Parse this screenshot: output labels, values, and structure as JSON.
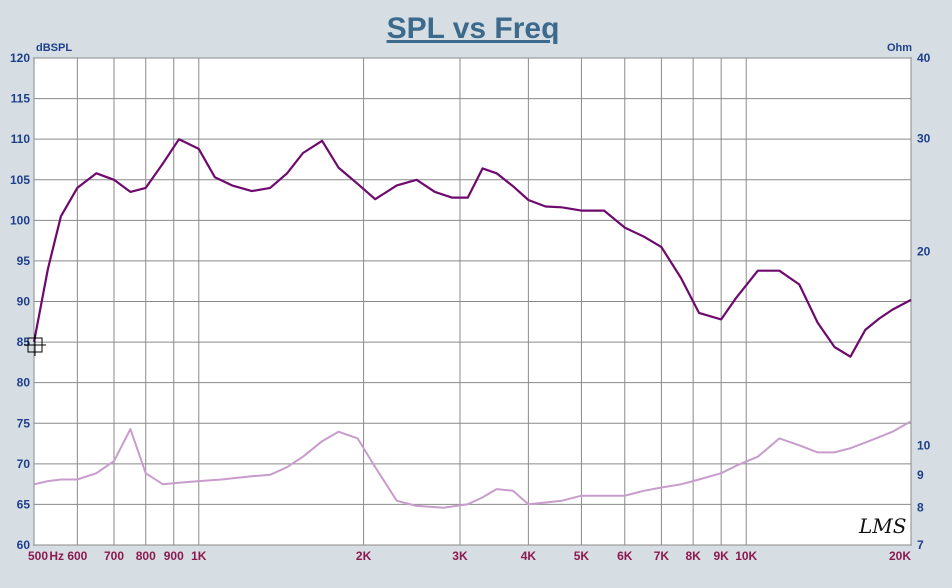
{
  "chart_data": {
    "type": "line",
    "title": "SPL vs Freq",
    "ylabel_left": "dBSPL",
    "ylabel_right": "Ohm",
    "x_scale": "log",
    "xlim": [
      500,
      20000
    ],
    "ylim": [
      60,
      120
    ],
    "ylim_right_log": [
      7,
      40
    ],
    "grid": true,
    "legend": "none",
    "x_tick_labels": [
      {
        "value": 500,
        "label": "500"
      },
      {
        "value": 550,
        "label": "Hz"
      },
      {
        "value": 600,
        "label": "600"
      },
      {
        "value": 700,
        "label": "700"
      },
      {
        "value": 800,
        "label": "800"
      },
      {
        "value": 900,
        "label": "900"
      },
      {
        "value": 1000,
        "label": "1K"
      },
      {
        "value": 2000,
        "label": "2K"
      },
      {
        "value": 3000,
        "label": "3K"
      },
      {
        "value": 4000,
        "label": "4K"
      },
      {
        "value": 5000,
        "label": "5K"
      },
      {
        "value": 6000,
        "label": "6K"
      },
      {
        "value": 7000,
        "label": "7K"
      },
      {
        "value": 8000,
        "label": "8K"
      },
      {
        "value": 9000,
        "label": "9K"
      },
      {
        "value": 10000,
        "label": "10K"
      },
      {
        "value": 20000,
        "label": "20K"
      }
    ],
    "y_left_ticks": [
      {
        "value": 60,
        "label": "60"
      },
      {
        "value": 65,
        "label": "65"
      },
      {
        "value": 70,
        "label": "70"
      },
      {
        "value": 75,
        "label": "75"
      },
      {
        "value": 80,
        "label": "80"
      },
      {
        "value": 85,
        "label": "85"
      },
      {
        "value": 90,
        "label": "90"
      },
      {
        "value": 95,
        "label": "95"
      },
      {
        "value": 100,
        "label": "100"
      },
      {
        "value": 105,
        "label": "105"
      },
      {
        "value": 110,
        "label": "110"
      },
      {
        "value": 115,
        "label": "115"
      },
      {
        "value": 120,
        "label": "120"
      }
    ],
    "y_right_ticks": [
      {
        "value": 7,
        "label": "7"
      },
      {
        "value": 8,
        "label": "8"
      },
      {
        "value": 9,
        "label": "9"
      },
      {
        "value": 10,
        "label": "10"
      },
      {
        "value": 20,
        "label": "20"
      },
      {
        "value": 30,
        "label": "30"
      },
      {
        "value": 40,
        "label": "40"
      }
    ],
    "series": [
      {
        "axis": "left",
        "color": "#6e0a6e",
        "x": [
          500,
          530,
          560,
          600,
          650,
          700,
          750,
          800,
          860,
          920,
          1000,
          1070,
          1150,
          1250,
          1350,
          1450,
          1550,
          1680,
          1800,
          1950,
          2100,
          2300,
          2500,
          2700,
          2900,
          3100,
          3300,
          3500,
          3750,
          4000,
          4300,
          4600,
          5000,
          5500,
          6000,
          6500,
          7000,
          7600,
          8200,
          9000,
          9600,
          10500,
          11500,
          12500,
          13500,
          14500,
          15500,
          16500,
          17500,
          18500,
          20000
        ],
        "y": [
          85,
          94,
          100.5,
          104,
          105.8,
          105,
          103.5,
          104,
          107,
          110,
          108.8,
          105.3,
          104.3,
          103.6,
          104,
          105.8,
          108.3,
          109.8,
          106.5,
          104.5,
          102.6,
          104.3,
          105,
          103.5,
          102.8,
          102.8,
          106.4,
          105.8,
          104.2,
          102.5,
          101.7,
          101.6,
          101.2,
          101.2,
          99.1,
          98,
          96.7,
          92.9,
          88.6,
          87.8,
          90.5,
          93.8,
          93.8,
          92.1,
          87.4,
          84.4,
          83.2,
          86.5,
          87.9,
          89,
          90.2
        ]
      },
      {
        "axis": "right",
        "color": "#c89ccc",
        "x": [
          500,
          530,
          560,
          600,
          650,
          700,
          750,
          800,
          860,
          920,
          1000,
          1100,
          1250,
          1350,
          1450,
          1550,
          1680,
          1800,
          1950,
          2100,
          2300,
          2500,
          2800,
          3100,
          3300,
          3500,
          3750,
          4000,
          4300,
          4600,
          5000,
          5500,
          6000,
          6500,
          7000,
          7600,
          8200,
          9000,
          9600,
          10500,
          11500,
          12500,
          13500,
          14500,
          15500,
          16500,
          17500,
          18500,
          20000
        ],
        "y": [
          8.7,
          8.8,
          8.85,
          8.85,
          9.05,
          9.45,
          10.6,
          9.05,
          8.7,
          8.75,
          8.8,
          8.85,
          8.95,
          9.0,
          9.25,
          9.6,
          10.15,
          10.5,
          10.25,
          9.25,
          8.2,
          8.05,
          8.0,
          8.1,
          8.3,
          8.55,
          8.5,
          8.1,
          8.15,
          8.2,
          8.35,
          8.35,
          8.35,
          8.5,
          8.6,
          8.7,
          8.85,
          9.05,
          9.3,
          9.6,
          10.25,
          10.0,
          9.75,
          9.75,
          9.9,
          10.1,
          10.3,
          10.5,
          10.9
        ]
      }
    ]
  },
  "logo": "LMS"
}
